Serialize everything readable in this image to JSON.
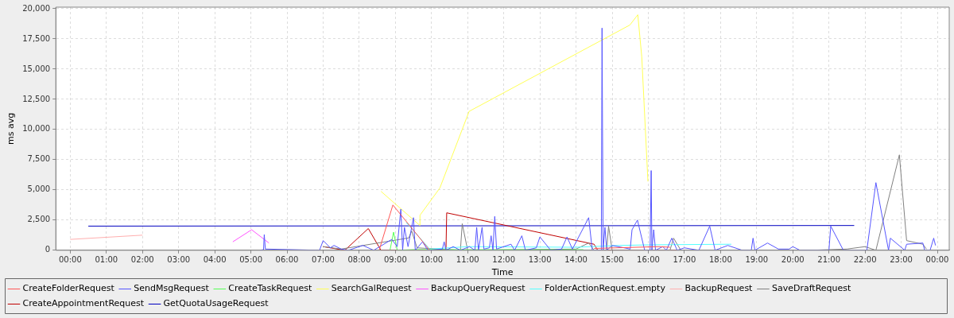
{
  "chart_data": {
    "type": "line",
    "xlabel": "Time",
    "ylabel": "ms avg",
    "xlim": [
      -0.4,
      24.33
    ],
    "ylim": [
      0,
      20130
    ],
    "xticks": [
      {
        "value": 0,
        "label": "00:00"
      },
      {
        "value": 1,
        "label": "01:00"
      },
      {
        "value": 2,
        "label": "02:00"
      },
      {
        "value": 3,
        "label": "03:00"
      },
      {
        "value": 4,
        "label": "04:00"
      },
      {
        "value": 5,
        "label": "05:00"
      },
      {
        "value": 6,
        "label": "06:00"
      },
      {
        "value": 7,
        "label": "07:00"
      },
      {
        "value": 8,
        "label": "08:00"
      },
      {
        "value": 9,
        "label": "09:00"
      },
      {
        "value": 10,
        "label": "10:00"
      },
      {
        "value": 11,
        "label": "11:00"
      },
      {
        "value": 12,
        "label": "12:00"
      },
      {
        "value": 13,
        "label": "13:00"
      },
      {
        "value": 14,
        "label": "14:00"
      },
      {
        "value": 15,
        "label": "15:00"
      },
      {
        "value": 16,
        "label": "16:00"
      },
      {
        "value": 17,
        "label": "17:00"
      },
      {
        "value": 18,
        "label": "18:00"
      },
      {
        "value": 19,
        "label": "19:00"
      },
      {
        "value": 20,
        "label": "20:00"
      },
      {
        "value": 21,
        "label": "21:00"
      },
      {
        "value": 22,
        "label": "22:00"
      },
      {
        "value": 23,
        "label": "23:00"
      },
      {
        "value": 24,
        "label": "00:00"
      }
    ],
    "yticks": [
      0,
      {
        "value": 2500,
        "label": "2,500"
      },
      {
        "value": 5000,
        "label": "5,000"
      },
      {
        "value": 7500,
        "label": "7,500"
      },
      {
        "value": 10000,
        "label": "10,000"
      },
      {
        "value": 12500,
        "label": "12,500"
      },
      {
        "value": 15000,
        "label": "15,000"
      },
      {
        "value": 17500,
        "label": "17,500"
      },
      {
        "value": 20000,
        "label": "20,000"
      }
    ],
    "grid": true,
    "legend": "bottom",
    "marker": "none",
    "line_style": "solid",
    "series": [
      {
        "name": "CreateFolderRequest",
        "color": "#ff5555",
        "x": [
          8.55,
          8.93,
          9.95,
          10.0,
          14.5,
          16.3,
          16.6
        ],
        "values": [
          0,
          3750,
          0,
          null,
          150,
          300,
          250
        ]
      },
      {
        "name": "SendMsgRequest",
        "color": "#5555ff",
        "x": [
          5.25,
          5.35,
          5.37,
          5.4,
          6.9,
          7.0,
          7.2,
          7.3,
          7.5,
          7.7,
          8.1,
          8.4,
          8.9,
          9.05,
          9.15,
          9.2,
          9.25,
          9.35,
          9.5,
          9.55,
          9.75,
          9.9,
          10.3,
          10.35,
          10.4,
          10.6,
          10.8,
          11.05,
          11.2,
          11.25,
          11.3,
          11.4,
          11.45,
          11.6,
          11.65,
          11.7,
          11.75,
          11.8,
          12.2,
          12.3,
          12.5,
          12.6,
          12.9,
          13.0,
          13.3,
          13.6,
          13.75,
          13.9,
          14.35,
          14.45,
          14.7,
          14.72,
          14.75,
          14.8,
          14.85,
          15.0,
          15.5,
          15.55,
          15.7,
          15.9,
          16.05,
          16.08,
          16.1,
          16.15,
          16.2,
          16.4,
          16.5,
          16.65,
          16.8,
          17.0,
          17.4,
          17.7,
          17.85,
          18.2,
          18.6,
          18.85,
          18.9,
          18.95,
          19.3,
          19.6,
          19.9,
          20.0,
          20.2,
          21.0,
          21.05,
          21.4,
          22.05,
          22.3,
          22.65,
          22.7,
          23.1,
          23.15,
          23.6,
          23.65,
          23.8,
          23.9,
          23.95
        ],
        "values": [
          0,
          50,
          1300,
          100,
          0,
          800,
          200,
          400,
          100,
          0,
          400,
          0,
          900,
          300,
          3400,
          0,
          1900,
          300,
          2700,
          0,
          700,
          0,
          100,
          700,
          0,
          300,
          0,
          300,
          0,
          1900,
          0,
          1900,
          100,
          200,
          1200,
          0,
          2800,
          100,
          500,
          0,
          1200,
          0,
          200,
          1100,
          0,
          100,
          1100,
          100,
          2700,
          0,
          0,
          18400,
          0,
          1900,
          0,
          400,
          100,
          1700,
          2500,
          0,
          0,
          6600,
          0,
          1700,
          0,
          300,
          0,
          1000,
          0,
          200,
          0,
          2000,
          0,
          400,
          0,
          0,
          1000,
          0,
          600,
          100,
          100,
          300,
          0,
          0,
          2000,
          0,
          0,
          5600,
          0,
          1000,
          0,
          500,
          600,
          0,
          0,
          1000,
          400
        ]
      },
      {
        "name": "CreateTaskRequest",
        "color": "#55ff55",
        "x": [
          8.85,
          8.95,
          9.05,
          9.5,
          14.2
        ],
        "values": [
          0,
          1500,
          0,
          50,
          50
        ]
      },
      {
        "name": "SearchGalRequest",
        "color": "#ffff55",
        "x": [
          8.6,
          9.68,
          9.68,
          10.23,
          11.04,
          15.49,
          15.71,
          15.82,
          15.99
        ],
        "values": [
          4880,
          2050,
          2900,
          5150,
          11500,
          18650,
          19500,
          16000,
          5700
        ]
      },
      {
        "name": "BackupQueryRequest",
        "color": "#ff55ff",
        "x": [
          4.5,
          5.02,
          5.5
        ],
        "values": [
          700,
          1700,
          600
        ]
      },
      {
        "name": "FolderActionRequest.empty",
        "color": "#55ffff",
        "x": [
          9.3,
          9.95,
          11.0,
          14.0,
          15.2,
          16.0,
          18.3
        ],
        "values": [
          2300,
          100,
          300,
          250,
          400,
          450,
          500
        ]
      },
      {
        "name": "BackupRequest",
        "color": "#ffafaf",
        "x": [
          0,
          2
        ],
        "values": [
          900,
          1250
        ]
      },
      {
        "name": "SaveDraftRequest",
        "color": "#808080",
        "x": [
          7.0,
          7.5,
          9.37,
          9.45,
          9.6,
          10.8,
          10.85,
          11.0,
          14.0,
          14.35,
          14.5,
          14.85,
          14.9,
          15.0,
          16.6,
          16.7,
          16.9,
          20.5,
          21.5,
          22.0,
          22.3,
          22.95,
          23.15,
          23.6,
          23.7
        ],
        "values": [
          300,
          100,
          1020,
          1600,
          200,
          0,
          2200,
          0,
          100,
          600,
          0,
          0,
          2000,
          0,
          0,
          1000,
          0,
          0,
          100,
          300,
          0,
          7900,
          800,
          500,
          100
        ]
      },
      {
        "name": "CreateAppointmentRequest",
        "color": "#c00000",
        "x": [
          7.0,
          7.6,
          8.25,
          8.6,
          10.4,
          10.42,
          14.5,
          14.6,
          16.8
        ],
        "values": [
          300,
          0,
          1800,
          0,
          0,
          3100,
          500,
          0,
          0
        ]
      },
      {
        "name": "GetQuotaUsageRequest",
        "color": "#0000c0",
        "x": [
          0.5,
          21.7
        ],
        "values": [
          2000,
          2050
        ]
      }
    ]
  }
}
